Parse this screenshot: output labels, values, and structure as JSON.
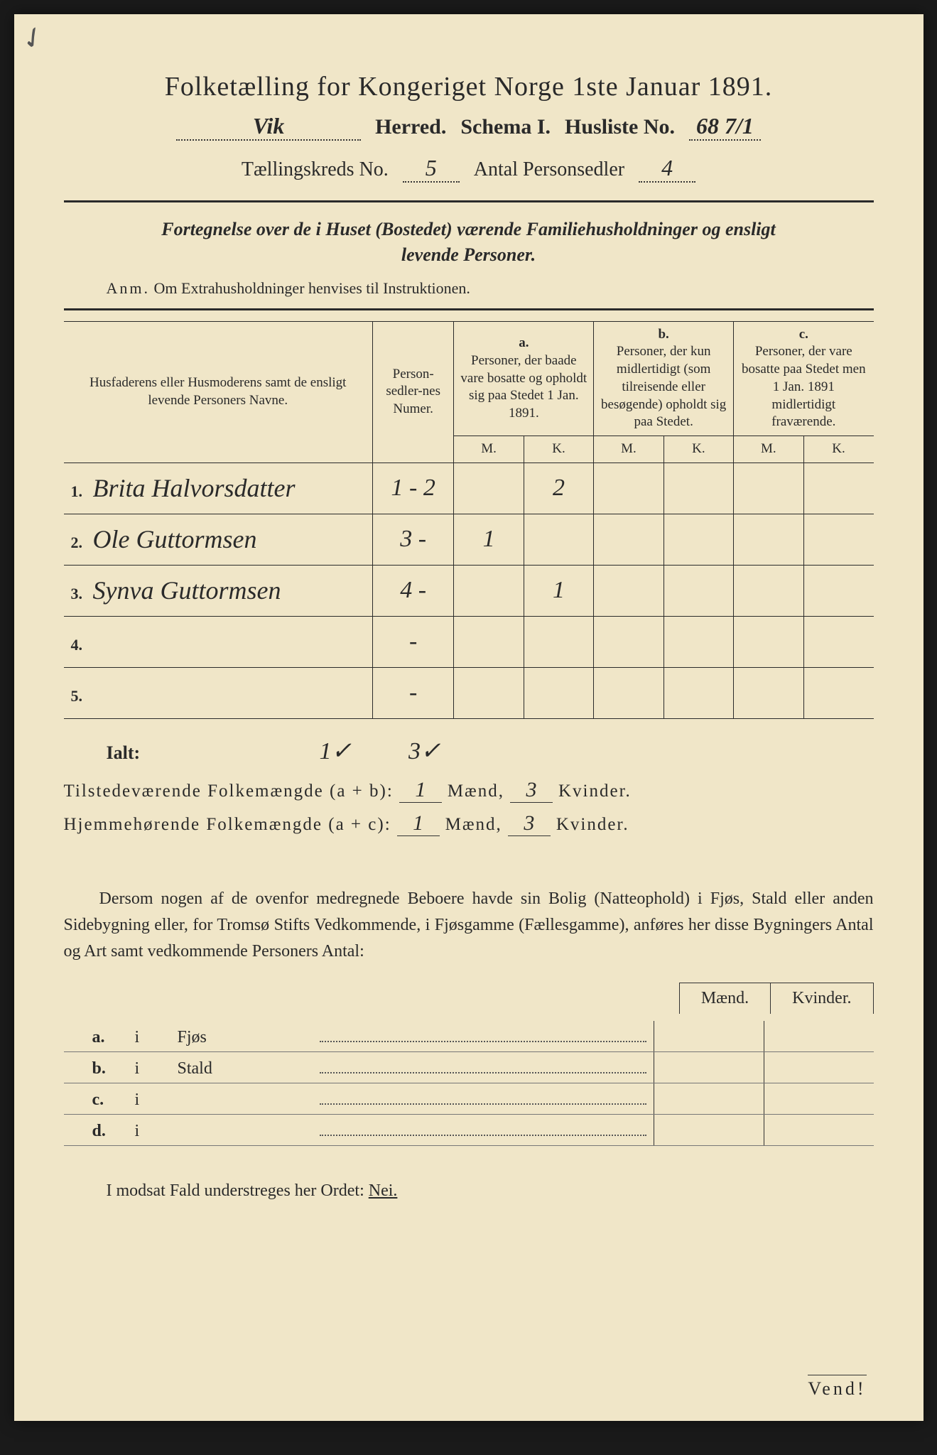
{
  "title": "Folketælling for Kongeriget Norge 1ste Januar 1891.",
  "header": {
    "herred_value": "Vik",
    "herred_label": "Herred.",
    "schema_label": "Schema I.",
    "husliste_label": "Husliste No.",
    "husliste_value": "68 7/1",
    "kreds_label": "Tællingskreds No.",
    "kreds_value": "5",
    "antal_label": "Antal Personsedler",
    "antal_value": "4"
  },
  "subtitle": {
    "lead": "Fortegnelse over de i Huset (Bostedet) værende Familiehusholdninger og ensligt",
    "line2": "levende Personer."
  },
  "anm": {
    "label": "Anm.",
    "text": "Om Extrahusholdninger henvises til Instruktionen."
  },
  "table": {
    "col_names": "Husfaderens eller Husmoderens samt de ensligt levende Personers Navne.",
    "col_numer": "Person-sedler-nes Numer.",
    "col_a_label": "a.",
    "col_a": "Personer, der baade vare bosatte og opholdt sig paa Stedet 1 Jan. 1891.",
    "col_b_label": "b.",
    "col_b": "Personer, der kun midlertidigt (som tilreisende eller besøgende) opholdt sig paa Stedet.",
    "col_c_label": "c.",
    "col_c": "Personer, der vare bosatte paa Stedet men 1 Jan. 1891 midlertidigt fraværende.",
    "m": "M.",
    "k": "K.",
    "rows": [
      {
        "num": "1.",
        "name": "Brita Halvorsdatter",
        "numer": "1 - 2",
        "a_m": "",
        "a_k": "2",
        "b_m": "",
        "b_k": "",
        "c_m": "",
        "c_k": ""
      },
      {
        "num": "2.",
        "name": "Ole Guttormsen",
        "numer": "3 -",
        "a_m": "1",
        "a_k": "",
        "b_m": "",
        "b_k": "",
        "c_m": "",
        "c_k": ""
      },
      {
        "num": "3.",
        "name": "Synva Guttormsen",
        "numer": "4 -",
        "a_m": "",
        "a_k": "1",
        "b_m": "",
        "b_k": "",
        "c_m": "",
        "c_k": ""
      },
      {
        "num": "4.",
        "name": "",
        "numer": "-",
        "a_m": "",
        "a_k": "",
        "b_m": "",
        "b_k": "",
        "c_m": "",
        "c_k": ""
      },
      {
        "num": "5.",
        "name": "",
        "numer": "-",
        "a_m": "",
        "a_k": "",
        "b_m": "",
        "b_k": "",
        "c_m": "",
        "c_k": ""
      }
    ]
  },
  "ialt": {
    "label": "Ialt:",
    "m": "1✓",
    "k": "3✓"
  },
  "stats": {
    "line1_label": "Tilstedeværende Folkemængde (a + b):",
    "line1_m": "1",
    "line1_mlabel": "Mænd,",
    "line1_k": "3",
    "line1_klabel": "Kvinder.",
    "line2_label": "Hjemmehørende Folkemængde (a + c):",
    "line2_m": "1",
    "line2_mlabel": "Mænd,",
    "line2_k": "3",
    "line2_klabel": "Kvinder."
  },
  "paragraph": "Dersom nogen af de ovenfor medregnede Beboere havde sin Bolig (Natteophold) i Fjøs, Stald eller anden Sidebygning eller, for Tromsø Stifts Vedkommende, i Fjøsgamme (Fællesgamme), anføres her disse Bygningers Antal og Art samt vedkommende Personers Antal:",
  "mk": {
    "m": "Mænd.",
    "k": "Kvinder."
  },
  "abcd": [
    {
      "lab": "a.",
      "i": "i",
      "txt": "Fjøs"
    },
    {
      "lab": "b.",
      "i": "i",
      "txt": "Stald"
    },
    {
      "lab": "c.",
      "i": "i",
      "txt": ""
    },
    {
      "lab": "d.",
      "i": "i",
      "txt": ""
    }
  ],
  "nei": {
    "pre": "I modsat Fald understreges her Ordet:",
    "word": "Nei."
  },
  "vend": "Vend!",
  "colors": {
    "paper": "#f0e6c8",
    "ink": "#2a2a2a",
    "bg": "#1a1a1a"
  }
}
